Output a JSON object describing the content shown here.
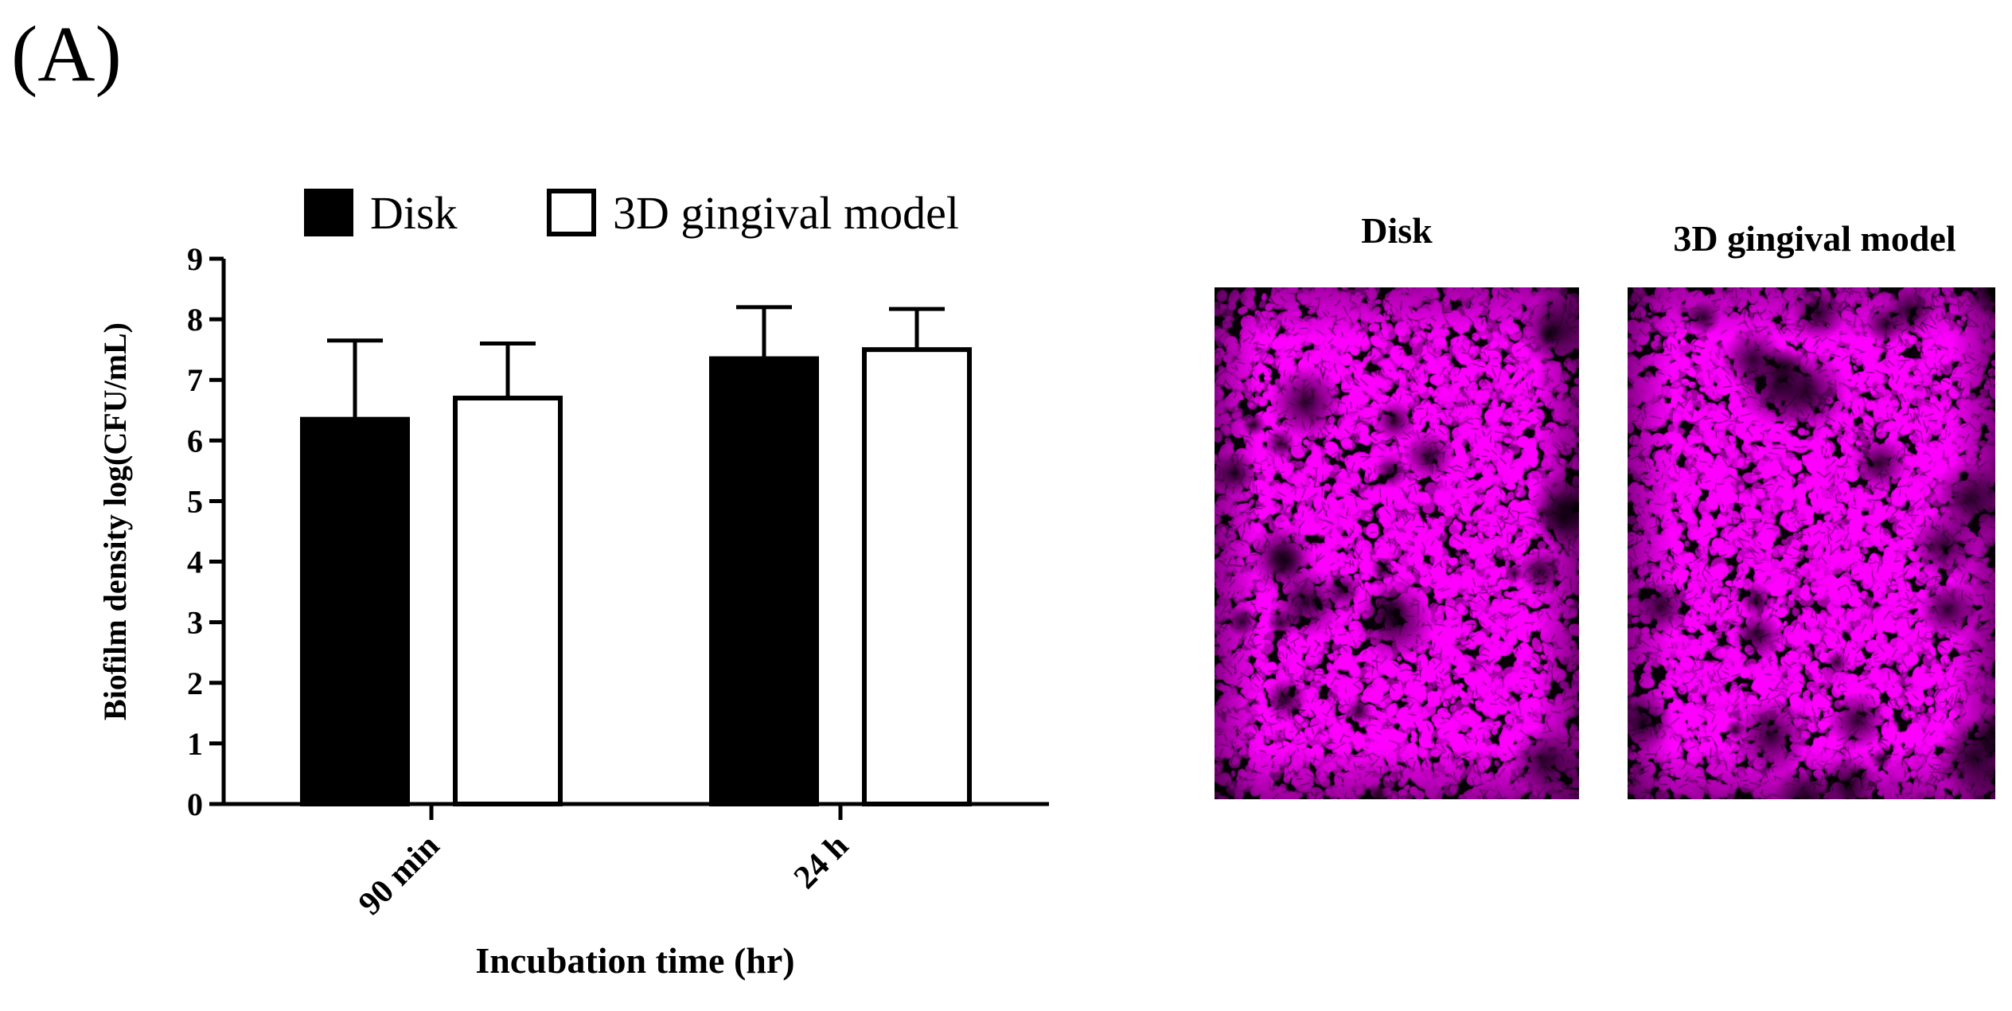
{
  "panel_label": "(A)",
  "chart_data": {
    "type": "bar",
    "title": "",
    "xlabel": "Incubation time (hr)",
    "ylabel": "Biofilm density log(CFU/mL)",
    "categories": [
      "90 min",
      "24 h"
    ],
    "ylim": [
      0,
      9
    ],
    "yticks": [
      0,
      1,
      2,
      3,
      4,
      5,
      6,
      7,
      8,
      9
    ],
    "legend_position": "top",
    "grid": false,
    "series": [
      {
        "name": "Disk",
        "color": "#000000",
        "values": [
          6.35,
          7.35
        ],
        "errors": [
          1.3,
          0.85
        ]
      },
      {
        "name": "3D gingival model",
        "color": "#ffffff",
        "values": [
          6.7,
          7.5
        ],
        "errors": [
          0.9,
          0.67
        ]
      }
    ]
  },
  "images": [
    {
      "title": "Disk",
      "color": "#ff00ff"
    },
    {
      "title": "3D gingival model",
      "color": "#ff00ff"
    }
  ]
}
